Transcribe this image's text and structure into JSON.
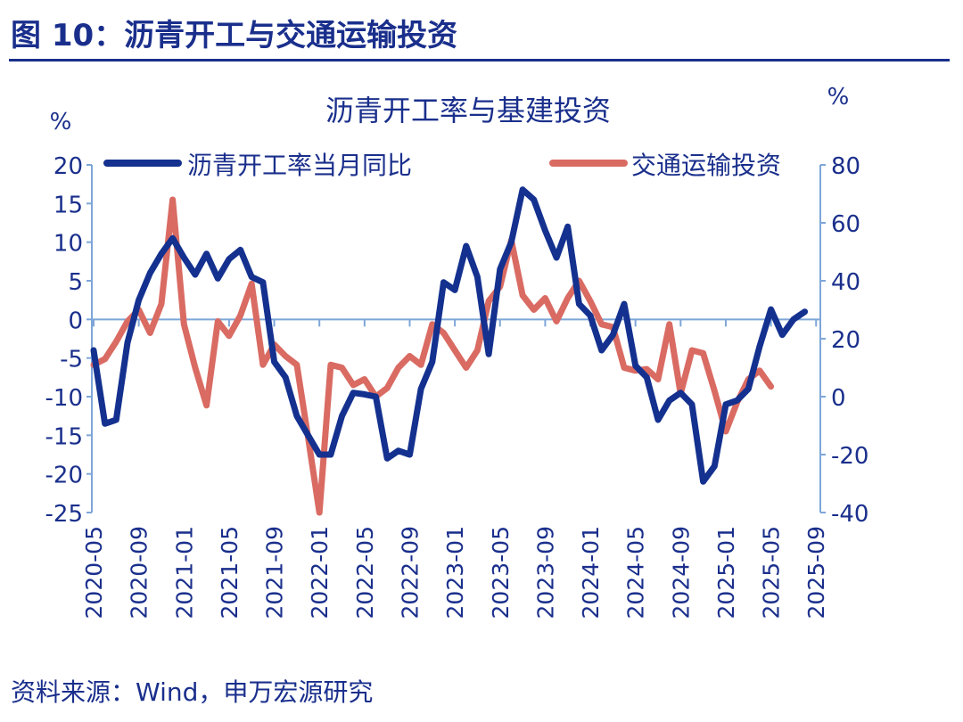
{
  "figure_title": "图 10：沥青开工与交通运输投资",
  "source": "资料来源：Wind，申万宏源研究",
  "chart_data": {
    "type": "line",
    "title": "沥青开工率与基建投资",
    "ylabel_left": "%",
    "ylabel_right": "%",
    "ylim_left": [
      -25,
      20
    ],
    "ylim_right": [
      -40,
      80
    ],
    "yticks_left": [
      20,
      15,
      10,
      5,
      0,
      -5,
      -10,
      -15,
      -20,
      -25
    ],
    "yticks_right": [
      80,
      60,
      40,
      20,
      0,
      -20,
      -40
    ],
    "xtick_labels": [
      "2020-05",
      "2020-09",
      "2021-01",
      "2021-05",
      "2021-09",
      "2022-01",
      "2022-05",
      "2022-09",
      "2023-01",
      "2023-05",
      "2023-09",
      "2024-01",
      "2024-05",
      "2024-09",
      "2025-01",
      "2025-05",
      "2025-09"
    ],
    "legend_position": "top",
    "grid": false,
    "colors": {
      "asphalt": "#14318f",
      "transport": "#d96b63",
      "axis": "#7ea6d8"
    },
    "series": [
      {
        "name": "沥青开工率当月同比",
        "axis": "left",
        "start": "2020-05",
        "values": [
          -4,
          -13.5,
          -13,
          -3,
          2.5,
          6,
          8.5,
          10.5,
          8,
          5.8,
          8.5,
          5.3,
          7.8,
          9,
          5.5,
          4.8,
          -5.5,
          -7.5,
          -12.5,
          -15,
          -17.5,
          -17.5,
          -12.5,
          -9.5,
          -9.7,
          -10,
          -18,
          -17,
          -17.5,
          -9,
          -5.5,
          4.8,
          3.8,
          9.5,
          5.5,
          -4.5,
          6.5,
          10,
          16.8,
          15.5,
          11.5,
          8,
          12,
          2,
          0.5,
          -4,
          -2,
          2,
          -6,
          -7.5,
          -13,
          -10.5,
          -9.5,
          -11,
          -21,
          -19,
          -11,
          -10.5,
          -9,
          -3.5,
          1.3,
          -2,
          0,
          1
        ]
      },
      {
        "name": "交通运输投资",
        "axis": "right",
        "start": "2020-05",
        "values": [
          11,
          13,
          19,
          26,
          30,
          22,
          32,
          68,
          25,
          10,
          -3,
          26,
          21,
          28,
          39,
          11,
          18,
          14,
          11,
          -14,
          -40,
          11,
          10,
          4,
          6,
          0,
          3,
          10,
          14,
          11,
          25,
          22,
          16,
          10,
          16,
          33,
          38,
          54,
          35,
          30,
          34,
          26,
          34,
          40,
          33,
          25,
          24,
          10,
          9,
          9.5,
          6,
          25,
          1,
          16,
          15,
          2,
          -12,
          -2,
          6,
          9,
          3.5
        ]
      }
    ]
  }
}
